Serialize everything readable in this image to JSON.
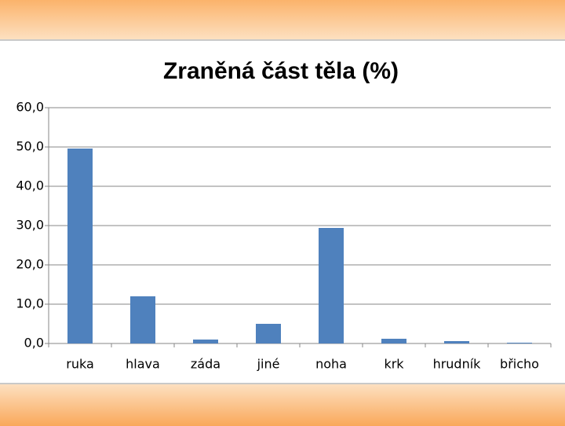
{
  "chart_data": {
    "type": "bar",
    "title": "Zraněná část těla (%)",
    "categories": [
      "ruka",
      "hlava",
      "záda",
      "jiné",
      "noha",
      "krk",
      "hrudník",
      "břicho"
    ],
    "values": [
      49.6,
      12.0,
      1.0,
      5.0,
      29.4,
      1.2,
      0.6,
      0.2
    ],
    "color": "#4f81bd",
    "ylim": [
      0,
      60
    ],
    "yticks": [
      {
        "value": 0,
        "label": "0,0"
      },
      {
        "value": 10,
        "label": "10,0"
      },
      {
        "value": 20,
        "label": "20,0"
      },
      {
        "value": 30,
        "label": "30,0"
      },
      {
        "value": 40,
        "label": "40,0"
      },
      {
        "value": 50,
        "label": "50,0"
      },
      {
        "value": 60,
        "label": "60,0"
      }
    ],
    "grid": true
  }
}
